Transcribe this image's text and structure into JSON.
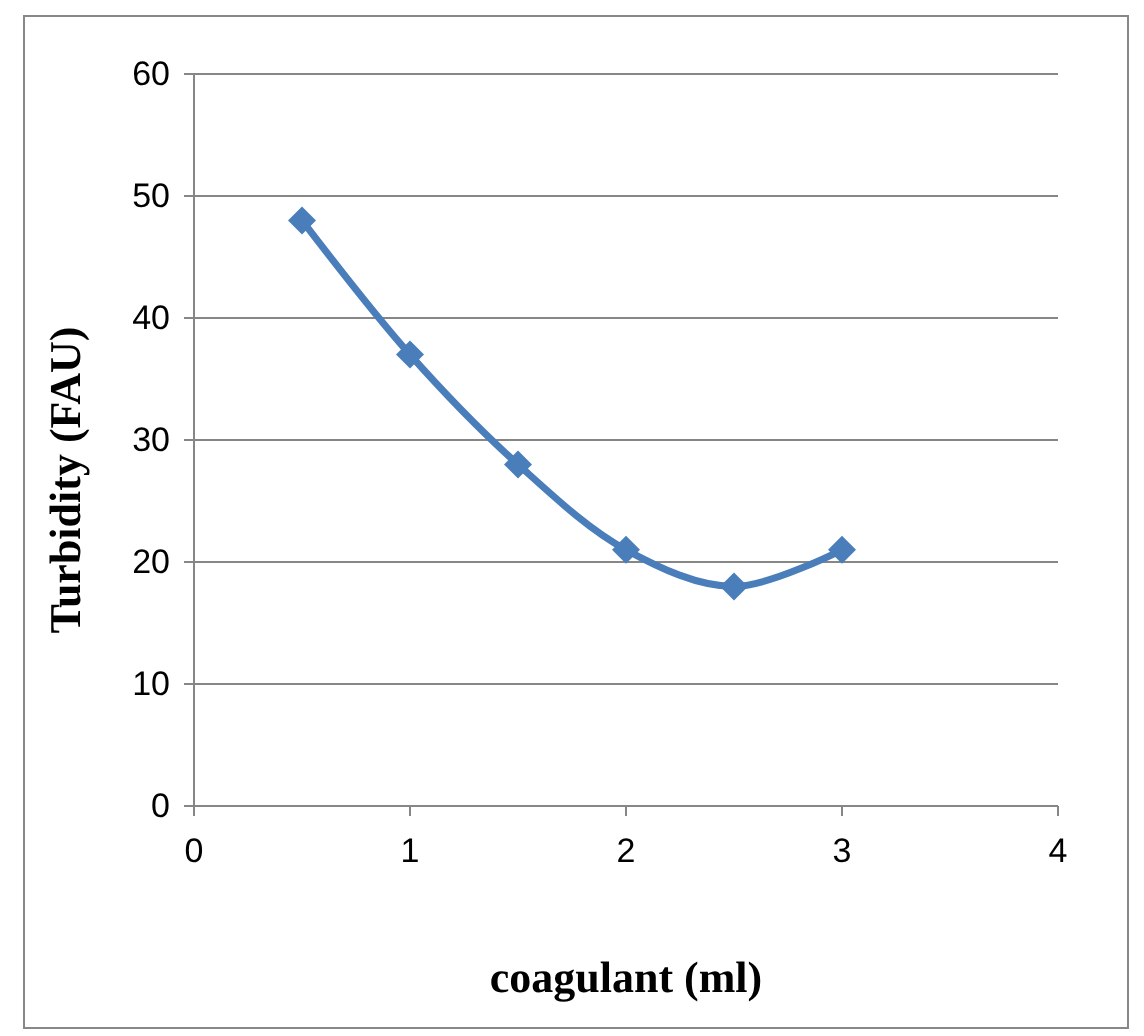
{
  "chart_data": {
    "type": "line",
    "xlabel": "coagulant (ml)",
    "ylabel": "Turbidity (FAU)",
    "x": [
      0.5,
      1,
      1.5,
      2,
      2.5,
      3
    ],
    "series": [
      {
        "color": "#4a7ebb",
        "values": [
          48,
          37,
          28,
          21,
          18,
          21
        ]
      }
    ],
    "xlim": [
      0,
      4
    ],
    "xticks": [
      0,
      1,
      2,
      3,
      4
    ],
    "ylim": [
      0,
      60
    ],
    "yticks": [
      0,
      10,
      20,
      30,
      40,
      50,
      60
    ],
    "grid": "y",
    "marker": "diamond",
    "line_style": "solid"
  }
}
